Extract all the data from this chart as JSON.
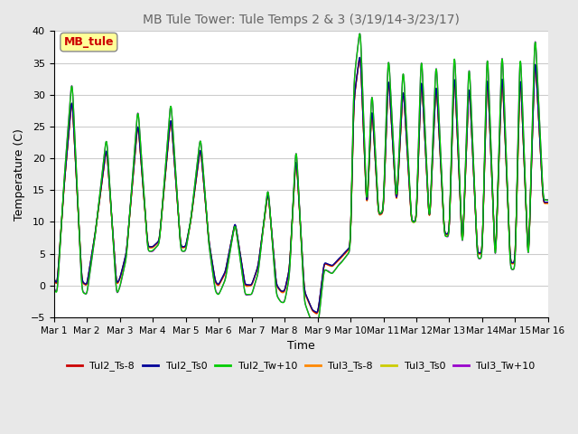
{
  "title": "MB Tule Tower: Tule Temps 2 & 3 (3/19/14-3/23/17)",
  "xlabel": "Time",
  "ylabel": "Temperature (C)",
  "ylim": [
    -5,
    40
  ],
  "yticks": [
    -5,
    0,
    5,
    10,
    15,
    20,
    25,
    30,
    35,
    40
  ],
  "xtick_labels": [
    "Mar 1",
    "Mar 2",
    "Mar 3",
    "Mar 4",
    "Mar 5",
    "Mar 6",
    "Mar 7",
    "Mar 8",
    "Mar 9",
    "Mar 10",
    "Mar 11",
    "Mar 12",
    "Mar 13",
    "Mar 14",
    "Mar 15",
    "Mar 16"
  ],
  "legend_box_label": "MB_tule",
  "legend_box_color": "#cc0000",
  "legend_box_bg": "#ffff99",
  "lines": [
    {
      "label": "Tul2_Ts-8",
      "color": "#cc0000",
      "lw": 1.0
    },
    {
      "label": "Tul2_Ts0",
      "color": "#000099",
      "lw": 1.0
    },
    {
      "label": "Tul2_Tw+10",
      "color": "#00cc00",
      "lw": 1.0
    },
    {
      "label": "Tul3_Ts-8",
      "color": "#ff8800",
      "lw": 1.0
    },
    {
      "label": "Tul3_Ts0",
      "color": "#cccc00",
      "lw": 1.0
    },
    {
      "label": "Tul3_Tw+10",
      "color": "#9900cc",
      "lw": 1.0
    }
  ],
  "bg_color": "#e8e8e8",
  "plot_bg": "#ffffff",
  "grid_color": "#cccccc",
  "title_color": "#666666"
}
